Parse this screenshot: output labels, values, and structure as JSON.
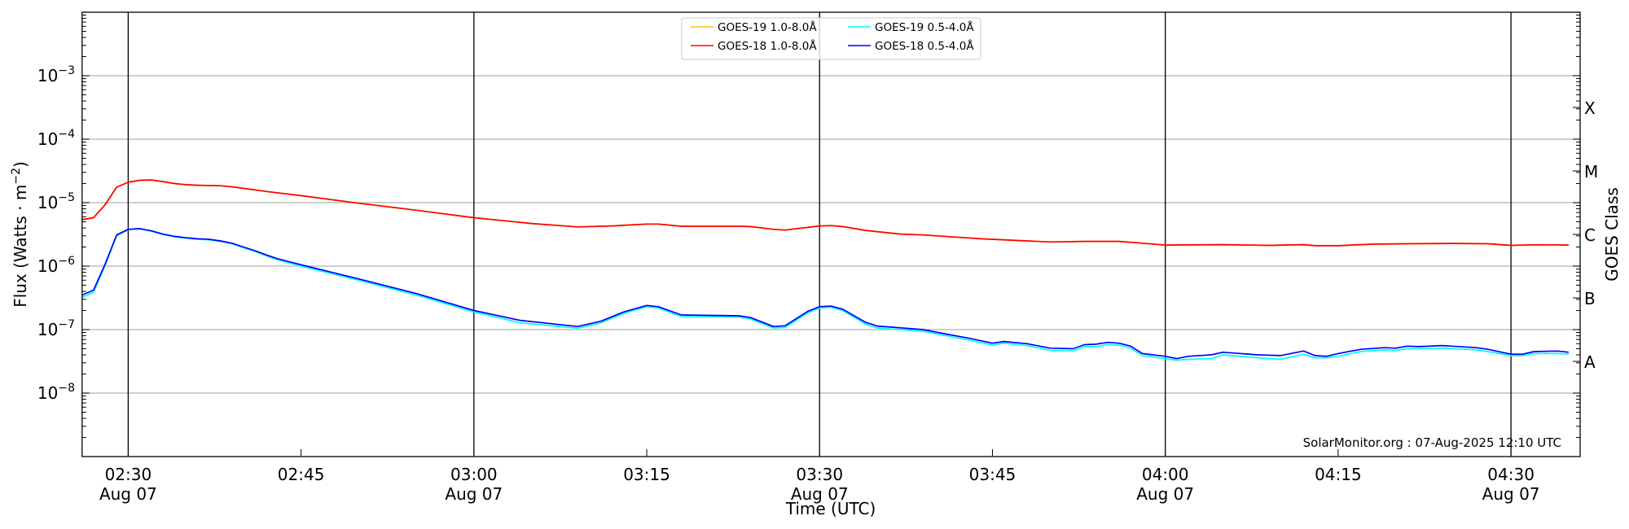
{
  "chart_data": {
    "type": "line",
    "xlabel": "Time (UTC)",
    "ylabel": "Flux (Watts · m",
    "ylabel_exp": "−2",
    "ylabel_close": ")",
    "y2label": "GOES Class",
    "yscale": "log",
    "ylim": [
      1e-09,
      0.01
    ],
    "xlim": [
      "02:26",
      "04:36"
    ],
    "grid": "horizontal at decades",
    "legend_position": "top-center",
    "yticks": [
      {
        "value": 1e-08,
        "base": "10",
        "exp": "−8"
      },
      {
        "value": 1e-07,
        "base": "10",
        "exp": "−7"
      },
      {
        "value": 1e-06,
        "base": "10",
        "exp": "−6"
      },
      {
        "value": 1e-05,
        "base": "10",
        "exp": "−5"
      },
      {
        "value": 0.0001,
        "base": "10",
        "exp": "−4"
      },
      {
        "value": 0.001,
        "base": "10",
        "exp": "−3"
      }
    ],
    "class_ticks": [
      {
        "label": "A",
        "value": 3.16e-08
      },
      {
        "label": "B",
        "value": 3.16e-07
      },
      {
        "label": "C",
        "value": 3.16e-06
      },
      {
        "label": "M",
        "value": 3.16e-05
      },
      {
        "label": "X",
        "value": 0.000316
      }
    ],
    "xticks": [
      {
        "time": "02:30",
        "label": "02:30",
        "sub": "Aug 07",
        "vline": true
      },
      {
        "time": "02:45",
        "label": "02:45",
        "sub": "",
        "vline": false
      },
      {
        "time": "03:00",
        "label": "03:00",
        "sub": "Aug 07",
        "vline": true
      },
      {
        "time": "03:15",
        "label": "03:15",
        "sub": "",
        "vline": false
      },
      {
        "time": "03:30",
        "label": "03:30",
        "sub": "Aug 07",
        "vline": true
      },
      {
        "time": "03:45",
        "label": "03:45",
        "sub": "",
        "vline": false
      },
      {
        "time": "04:00",
        "label": "04:00",
        "sub": "Aug 07",
        "vline": true
      },
      {
        "time": "04:15",
        "label": "04:15",
        "sub": "",
        "vline": false
      },
      {
        "time": "04:30",
        "label": "04:30",
        "sub": "Aug 07",
        "vline": true
      }
    ],
    "watermark": "SolarMonitor.org : 07-Aug-2025 12:10 UTC",
    "series": [
      {
        "name": "GOES-19 1.0-8.0Å",
        "color": "#ffc20e",
        "x": [
          "02:26",
          "02:27",
          "02:28",
          "02:29",
          "02:30",
          "02:31",
          "02:32",
          "02:33",
          "02:34",
          "02:35",
          "02:36",
          "02:37",
          "02:38",
          "02:39",
          "02:40",
          "02:42",
          "02:45",
          "02:50",
          "02:55",
          "03:00",
          "03:05",
          "03:09",
          "03:12",
          "03:15",
          "03:16",
          "03:18",
          "03:23",
          "03:24",
          "03:26",
          "03:27",
          "03:30",
          "03:31",
          "03:32",
          "03:34",
          "03:37",
          "03:39",
          "03:44",
          "03:50",
          "03:53",
          "03:56",
          "03:58",
          "04:00",
          "04:05",
          "04:09",
          "04:12",
          "04:13",
          "04:15",
          "04:18",
          "04:21",
          "04:25",
          "04:28",
          "04:30",
          "04:32",
          "04:35"
        ],
        "y": [
          5.4e-06,
          5.8e-06,
          9.3e-06,
          1.75e-05,
          2.1e-05,
          2.25e-05,
          2.28e-05,
          2.15e-05,
          2e-05,
          1.92e-05,
          1.88e-05,
          1.86e-05,
          1.85e-05,
          1.78e-05,
          1.68e-05,
          1.5e-05,
          1.29e-05,
          9.8e-06,
          7.6e-06,
          5.8e-06,
          4.7e-06,
          4.15e-06,
          4.3e-06,
          4.6e-06,
          4.6e-06,
          4.25e-06,
          4.25e-06,
          4.2e-06,
          3.8e-06,
          3.7e-06,
          4.3e-06,
          4.35e-06,
          4.2e-06,
          3.65e-06,
          3.2e-06,
          3.1e-06,
          2.7e-06,
          2.4e-06,
          2.45e-06,
          2.45e-06,
          2.3e-06,
          2.15e-06,
          2.18e-06,
          2.12e-06,
          2.18e-06,
          2.1e-06,
          2.1e-06,
          2.22e-06,
          2.25e-06,
          2.28e-06,
          2.25e-06,
          2.12e-06,
          2.17e-06,
          2.15e-06
        ]
      },
      {
        "name": "GOES-18 1.0-8.0Å",
        "color": "#ff0000",
        "x": [
          "02:26",
          "02:27",
          "02:28",
          "02:29",
          "02:30",
          "02:31",
          "02:32",
          "02:33",
          "02:34",
          "02:35",
          "02:36",
          "02:37",
          "02:38",
          "02:39",
          "02:40",
          "02:42",
          "02:45",
          "02:50",
          "02:55",
          "03:00",
          "03:05",
          "03:09",
          "03:12",
          "03:15",
          "03:16",
          "03:18",
          "03:23",
          "03:24",
          "03:26",
          "03:27",
          "03:30",
          "03:31",
          "03:32",
          "03:34",
          "03:37",
          "03:39",
          "03:44",
          "03:50",
          "03:53",
          "03:56",
          "03:58",
          "04:00",
          "04:05",
          "04:09",
          "04:12",
          "04:13",
          "04:15",
          "04:18",
          "04:21",
          "04:25",
          "04:28",
          "04:30",
          "04:32",
          "04:35"
        ],
        "y": [
          5.4e-06,
          5.8e-06,
          9.3e-06,
          1.75e-05,
          2.1e-05,
          2.25e-05,
          2.28e-05,
          2.15e-05,
          2e-05,
          1.92e-05,
          1.88e-05,
          1.86e-05,
          1.85e-05,
          1.78e-05,
          1.68e-05,
          1.5e-05,
          1.29e-05,
          9.8e-06,
          7.6e-06,
          5.8e-06,
          4.7e-06,
          4.15e-06,
          4.3e-06,
          4.6e-06,
          4.6e-06,
          4.25e-06,
          4.25e-06,
          4.2e-06,
          3.8e-06,
          3.7e-06,
          4.3e-06,
          4.35e-06,
          4.2e-06,
          3.65e-06,
          3.2e-06,
          3.1e-06,
          2.7e-06,
          2.4e-06,
          2.45e-06,
          2.45e-06,
          2.3e-06,
          2.15e-06,
          2.18e-06,
          2.12e-06,
          2.18e-06,
          2.1e-06,
          2.1e-06,
          2.22e-06,
          2.25e-06,
          2.28e-06,
          2.25e-06,
          2.12e-06,
          2.17e-06,
          2.15e-06
        ]
      },
      {
        "name": "GOES-19 0.5-4.0Å",
        "color": "#00ffff",
        "x": [
          "02:26",
          "02:27",
          "02:28",
          "02:29",
          "02:30",
          "02:31",
          "02:32",
          "02:33",
          "02:34",
          "02:35",
          "02:36",
          "02:37",
          "02:38",
          "02:39",
          "02:40",
          "02:41",
          "02:42",
          "02:43",
          "02:45",
          "02:50",
          "02:55",
          "03:00",
          "03:04",
          "03:09",
          "03:11",
          "03:13",
          "03:15",
          "03:16",
          "03:18",
          "03:23",
          "03:24",
          "03:26",
          "03:27",
          "03:29",
          "03:30",
          "03:31",
          "03:32",
          "03:34",
          "03:35",
          "03:39",
          "03:41",
          "03:43",
          "03:45",
          "03:46",
          "03:48",
          "03:50",
          "03:52",
          "03:53",
          "03:54",
          "03:55",
          "03:56",
          "03:57",
          "03:58",
          "04:00",
          "04:01",
          "04:02",
          "04:04",
          "04:05",
          "04:08",
          "04:10",
          "04:12",
          "04:13",
          "04:14",
          "04:15",
          "04:17",
          "04:19",
          "04:20",
          "04:21",
          "04:22",
          "04:24",
          "04:27",
          "04:28",
          "04:30",
          "04:31",
          "04:32",
          "04:34",
          "04:35"
        ],
        "y": [
          3.2e-07,
          3.9e-07,
          1.02e-06,
          3e-06,
          3.75e-06,
          3.85e-06,
          3.55e-06,
          3.15e-06,
          2.9e-06,
          2.75e-06,
          2.65e-06,
          2.6e-06,
          2.45e-06,
          2.25e-06,
          1.95e-06,
          1.7e-06,
          1.45e-06,
          1.26e-06,
          1e-06,
          6e-07,
          3.5e-07,
          1.9e-07,
          1.28e-07,
          1.05e-07,
          1.27e-07,
          1.8e-07,
          2.3e-07,
          2.2e-07,
          1.6e-07,
          1.58e-07,
          1.47e-07,
          1.06e-07,
          1.08e-07,
          1.85e-07,
          2.2e-07,
          2.25e-07,
          2e-07,
          1.22e-07,
          1.06e-07,
          9.4e-08,
          8e-08,
          6.8e-08,
          5.7e-08,
          6.1e-08,
          5.6e-08,
          4.7e-08,
          4.6e-08,
          5.4e-08,
          5.4e-08,
          5.8e-08,
          5.7e-08,
          5.1e-08,
          3.9e-08,
          3.5e-08,
          3.3e-08,
          3.4e-08,
          3.5e-08,
          4e-08,
          3.6e-08,
          3.4e-08,
          4.1e-08,
          3.6e-08,
          3.6e-08,
          3.8e-08,
          4.5e-08,
          4.8e-08,
          4.7e-08,
          5e-08,
          5e-08,
          5.1e-08,
          4.8e-08,
          4.5e-08,
          3.9e-08,
          3.9e-08,
          4.2e-08,
          4.2e-08,
          4.1e-08
        ]
      },
      {
        "name": "GOES-18 0.5-4.0Å",
        "color": "#0000ff",
        "x": [
          "02:26",
          "02:27",
          "02:28",
          "02:29",
          "02:30",
          "02:31",
          "02:32",
          "02:33",
          "02:34",
          "02:35",
          "02:36",
          "02:37",
          "02:38",
          "02:39",
          "02:40",
          "02:41",
          "02:42",
          "02:43",
          "02:45",
          "02:50",
          "02:55",
          "03:00",
          "03:04",
          "03:09",
          "03:11",
          "03:13",
          "03:15",
          "03:16",
          "03:18",
          "03:23",
          "03:24",
          "03:26",
          "03:27",
          "03:29",
          "03:30",
          "03:31",
          "03:32",
          "03:34",
          "03:35",
          "03:39",
          "03:41",
          "03:43",
          "03:45",
          "03:46",
          "03:48",
          "03:50",
          "03:52",
          "03:53",
          "03:54",
          "03:55",
          "03:56",
          "03:57",
          "03:58",
          "04:00",
          "04:01",
          "04:02",
          "04:04",
          "04:05",
          "04:08",
          "04:10",
          "04:12",
          "04:13",
          "04:14",
          "04:15",
          "04:17",
          "04:19",
          "04:20",
          "04:21",
          "04:22",
          "04:24",
          "04:27",
          "04:28",
          "04:30",
          "04:31",
          "04:32",
          "04:34",
          "04:35"
        ],
        "y": [
          3.5e-07,
          4.2e-07,
          1.08e-06,
          3.1e-06,
          3.8e-06,
          3.9e-06,
          3.6e-06,
          3.2e-06,
          2.95e-06,
          2.8e-06,
          2.7e-06,
          2.65e-06,
          2.5e-06,
          2.3e-06,
          2e-06,
          1.75e-06,
          1.5e-06,
          1.3e-06,
          1.05e-06,
          6.3e-07,
          3.7e-07,
          2e-07,
          1.4e-07,
          1.12e-07,
          1.35e-07,
          1.9e-07,
          2.4e-07,
          2.3e-07,
          1.7e-07,
          1.65e-07,
          1.55e-07,
          1.12e-07,
          1.15e-07,
          1.95e-07,
          2.3e-07,
          2.35e-07,
          2.1e-07,
          1.3e-07,
          1.14e-07,
          1e-07,
          8.5e-08,
          7.3e-08,
          6.1e-08,
          6.5e-08,
          6e-08,
          5.1e-08,
          5e-08,
          5.8e-08,
          5.9e-08,
          6.3e-08,
          6.1e-08,
          5.5e-08,
          4.2e-08,
          3.8e-08,
          3.5e-08,
          3.8e-08,
          4e-08,
          4.4e-08,
          4e-08,
          3.9e-08,
          4.6e-08,
          3.9e-08,
          3.8e-08,
          4.2e-08,
          4.9e-08,
          5.2e-08,
          5.1e-08,
          5.5e-08,
          5.4e-08,
          5.6e-08,
          5.2e-08,
          4.9e-08,
          4.1e-08,
          4.1e-08,
          4.5e-08,
          4.6e-08,
          4.4e-08
        ]
      }
    ]
  }
}
